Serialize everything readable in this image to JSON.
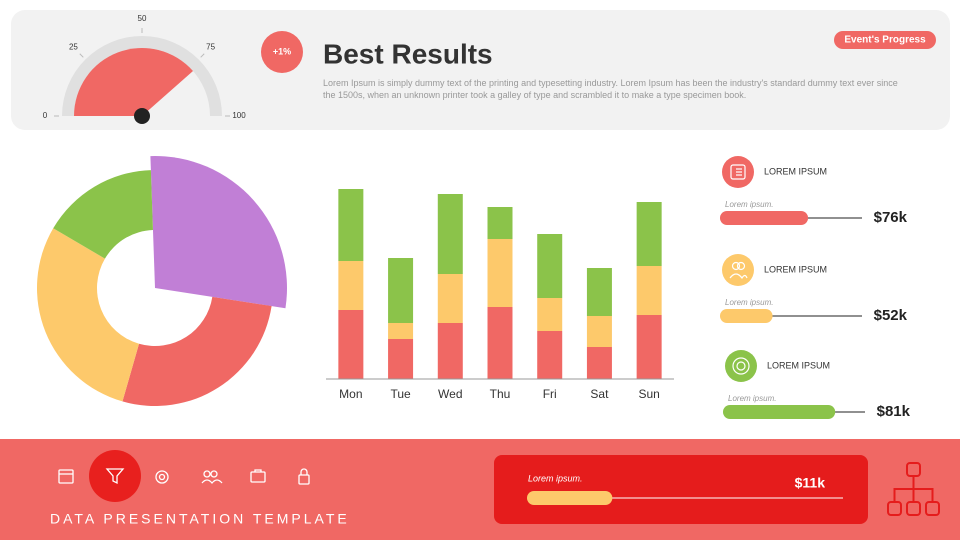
{
  "header": {
    "badge": "+1%",
    "title": "Best Results",
    "text": "Lorem Ipsum is simply dummy text of the printing and typesetting industry. Lorem Ipsum has been the industry's standard dummy text ever since the 1500s, when an unknown printer took a galley of type and scrambled it to make a type specimen book.",
    "tag": "Event's Progress"
  },
  "chart_data": [
    {
      "type": "gauge",
      "value": 77,
      "ylim": [
        0,
        100
      ],
      "yticks": [
        0,
        25,
        50,
        75,
        100
      ],
      "color": "#f06864"
    },
    {
      "type": "donut",
      "values": [
        28,
        27,
        29,
        16
      ],
      "colors": [
        "#c17fd6",
        "#f06864",
        "#fdc96b",
        "#8bc34a"
      ],
      "exploded": 0
    },
    {
      "type": "stacked_bar",
      "categories": [
        "Mon",
        "Tue",
        "Wed",
        "Thu",
        "Fri",
        "Sat",
        "Sun"
      ],
      "ylim": [
        0,
        200
      ],
      "series": [
        {
          "color": "#f06864",
          "values": [
            69,
            40,
            56,
            72,
            48,
            32,
            64
          ]
        },
        {
          "color": "#fdc96b",
          "values": [
            49,
            16,
            49,
            68,
            33,
            31,
            49
          ]
        },
        {
          "color": "#8bc34a",
          "values": [
            72,
            65,
            80,
            32,
            64,
            48,
            64
          ]
        }
      ]
    }
  ],
  "kpis": {
    "items": [
      {
        "label": "LOREM IPSUM",
        "caption": "Lorem ipsum.",
        "value": "$76k",
        "progress": 62,
        "color": "#f06864"
      },
      {
        "label": "LOREM IPSUM",
        "caption": "Lorem ipsum.",
        "value": "$52k",
        "progress": 37,
        "color": "#fdc96b"
      },
      {
        "label": "LOREM IPSUM",
        "caption": "Lorem ipsum.",
        "value": "$81k",
        "progress": 79,
        "color": "#8bc34a"
      }
    ]
  },
  "footer": {
    "title": "DATA PRESENTATION TEMPLATE",
    "card": {
      "caption": "Lorem ipsum.",
      "value": "$11k",
      "progress": 27
    }
  }
}
